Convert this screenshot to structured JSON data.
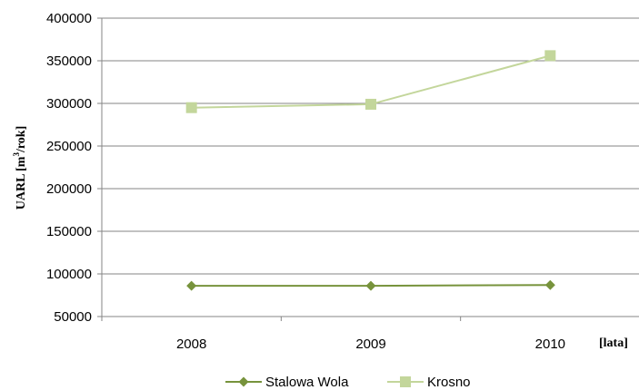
{
  "chart_data": {
    "type": "line",
    "categories": [
      "2008",
      "2009",
      "2010"
    ],
    "series": [
      {
        "name": "Stalowa Wola",
        "values": [
          86000,
          86000,
          87000
        ],
        "color": "#77933c",
        "marker": "diamond"
      },
      {
        "name": "Krosno",
        "values": [
          295000,
          299000,
          356000
        ],
        "color": "#c3d69b",
        "marker": "square"
      }
    ],
    "ylabel_main": "UARL [m",
    "ylabel_sup": "3",
    "ylabel_tail": "/rok]",
    "xlabel": "[lata]",
    "ylim": [
      50000,
      400000
    ],
    "yticks": [
      "50000",
      "100000",
      "150000",
      "200000",
      "250000",
      "300000",
      "350000",
      "400000"
    ],
    "grid": true,
    "legend": "bottom"
  }
}
